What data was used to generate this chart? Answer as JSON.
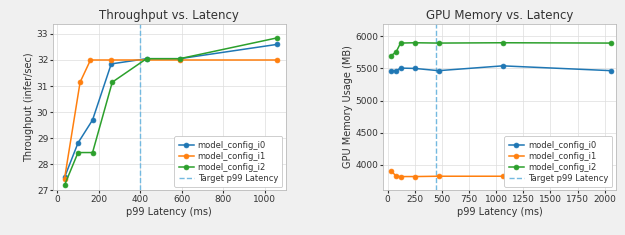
{
  "plot1": {
    "title": "Throughput vs. Latency",
    "xlabel": "p99 Latency (ms)",
    "ylabel": "Throughput (infer/sec)",
    "vline": 400,
    "xlim": [
      -20,
      1100
    ],
    "ylim": [
      27,
      33.4
    ],
    "yticks": [
      27,
      28,
      29,
      30,
      31,
      32,
      33
    ],
    "xticks": [
      0,
      200,
      400,
      600,
      800,
      1000
    ],
    "series": {
      "model_config_0": {
        "x": [
          35,
          100,
          170,
          260,
          430,
          590,
          1060
        ],
        "y": [
          27.5,
          28.82,
          29.7,
          31.85,
          32.05,
          32.05,
          32.6
        ],
        "color": "#1f77b4",
        "marker": "o"
      },
      "model_config_1": {
        "x": [
          35,
          110,
          160,
          260,
          590,
          1060
        ],
        "y": [
          27.45,
          31.15,
          32.0,
          32.0,
          32.0,
          32.0
        ],
        "color": "#ff7f0e",
        "marker": "o"
      },
      "model_config_2": {
        "x": [
          35,
          100,
          170,
          265,
          430,
          590,
          1060
        ],
        "y": [
          27.2,
          28.45,
          28.45,
          31.15,
          32.05,
          32.05,
          32.85
        ],
        "color": "#2ca02c",
        "marker": "o"
      }
    }
  },
  "plot2": {
    "title": "GPU Memory vs. Latency",
    "xlabel": "p99 Latency (ms)",
    "ylabel": "GPU Memory Usage (MB)",
    "vline": 450,
    "xlim": [
      -40,
      2100
    ],
    "ylim": [
      3600,
      6200
    ],
    "yticks": [
      4000,
      4500,
      5000,
      5500,
      6000
    ],
    "xticks": [
      0,
      250,
      500,
      750,
      1000,
      1250,
      1500,
      1750,
      2000
    ],
    "series": {
      "model_config_0": {
        "x": [
          35,
          80,
          120,
          250,
          470,
          1060,
          2060
        ],
        "y": [
          5465,
          5465,
          5505,
          5500,
          5465,
          5540,
          5465
        ],
        "color": "#1f77b4",
        "marker": "o"
      },
      "model_config_1": {
        "x": [
          35,
          80,
          120,
          250,
          470,
          1060
        ],
        "y": [
          3900,
          3820,
          3815,
          3815,
          3820,
          3820
        ],
        "color": "#ff7f0e",
        "marker": "o"
      },
      "model_config_2": {
        "x": [
          35,
          80,
          120,
          250,
          470,
          1060,
          2060
        ],
        "y": [
          5700,
          5760,
          5895,
          5900,
          5895,
          5900,
          5895
        ],
        "color": "#2ca02c",
        "marker": "o"
      }
    }
  },
  "legend_labels": [
    "model_config_i0",
    "model_config_i1",
    "model_config_i2",
    "Target p99 Latency"
  ],
  "vline_color": "#74b9e0",
  "vline_style": "--",
  "grid_color": "#dddddd",
  "fig_bg_color": "#f0f0f0",
  "ax_bg_color": "#ffffff",
  "title_fontsize": 8.5,
  "label_fontsize": 7,
  "tick_fontsize": 6.5,
  "legend_fontsize": 6,
  "marker_size": 3.5,
  "line_width": 1.1
}
